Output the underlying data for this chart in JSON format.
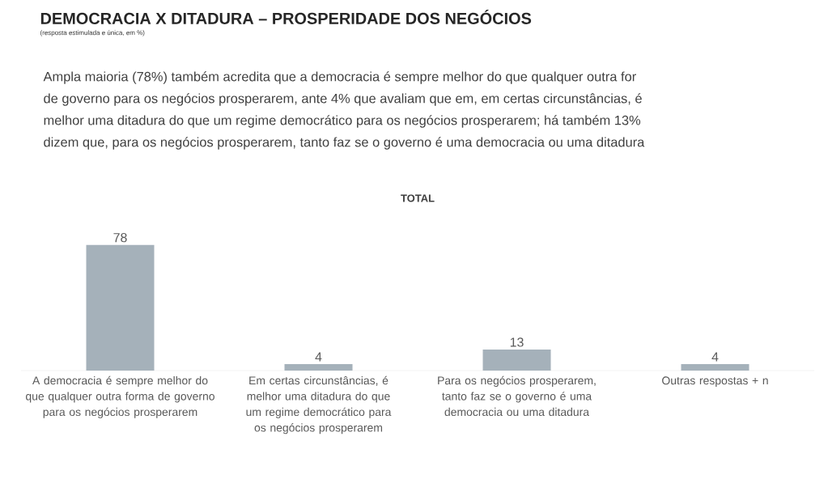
{
  "chart_data": {
    "type": "bar",
    "title": "DEMOCRACIA X DITADURA – PROSPERIDADE DOS NEGÓCIOS",
    "subtitle": "(resposta estimulada e única, em %)",
    "annotations": [
      "Ampla maioria (78%) também acredita que a democracia é sempre melhor do que qualquer outra for",
      "de governo para os negócios prosperarem, ante 4% que avaliam que em, em certas circunstâncias, é",
      "melhor uma ditadura do que um regime democrático para os negócios prosperarem; há também 13%",
      "dizem que, para os negócios prosperarem, tanto faz se o governo é uma democracia ou uma ditadura",
      "TOTAL"
    ],
    "categories": [
      "A democracia é sempre melhor do que qualquer outra forma de governo para os negócios prosperarem",
      "Em certas circunstâncias, é melhor uma ditadura do que um regime democrático para os negócios prosperarem",
      "Para os negócios prosperarem, tanto faz se o governo é uma democracia ou uma ditadura",
      "Outras respostas + n"
    ],
    "values": [
      78,
      4,
      13,
      4
    ],
    "color": "#a5b1ba",
    "data_labels": true
  }
}
